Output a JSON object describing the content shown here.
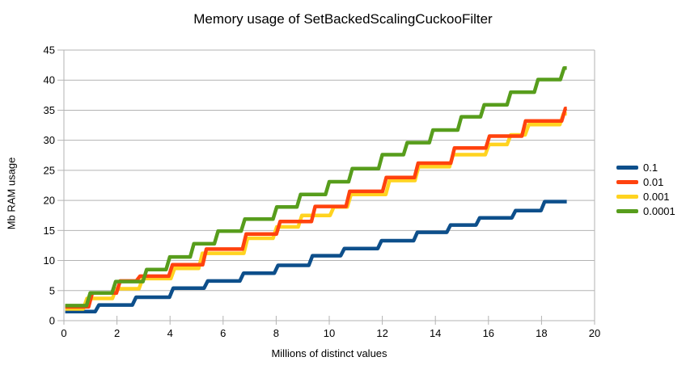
{
  "chart_data": {
    "type": "line",
    "line_style": "step",
    "title": "Memory usage of SetBackedScalingCuckooFilter",
    "xlabel": "Millions of distinct values",
    "ylabel": "Mb RAM usage",
    "xlim": [
      0,
      20
    ],
    "ylim": [
      0,
      45
    ],
    "x_ticks": [
      0,
      2,
      4,
      6,
      8,
      10,
      12,
      14,
      16,
      18,
      20
    ],
    "y_ticks": [
      0,
      5,
      10,
      15,
      20,
      25,
      30,
      35,
      40,
      45
    ],
    "grid": "horizontal",
    "legend_position": "right",
    "x_end": 18.95,
    "draw_order": [
      0,
      2,
      1,
      3
    ],
    "colors": {
      "grid": "#b3b3b3",
      "axis": "#b3b3b3",
      "text": "#000000",
      "background": "#ffffff"
    },
    "series": [
      {
        "name": "0.1",
        "color": "#0d4f8b",
        "steps": [
          [
            0.05,
            1.5
          ],
          [
            1.25,
            2.6
          ],
          [
            2.65,
            3.9
          ],
          [
            4.05,
            5.4
          ],
          [
            5.35,
            6.6
          ],
          [
            6.7,
            7.9
          ],
          [
            8.0,
            9.2
          ],
          [
            9.3,
            10.8
          ],
          [
            10.5,
            12.0
          ],
          [
            11.9,
            13.3
          ],
          [
            13.25,
            14.7
          ],
          [
            14.5,
            15.9
          ],
          [
            15.6,
            17.1
          ],
          [
            16.95,
            18.3
          ],
          [
            18.05,
            19.8
          ]
        ]
      },
      {
        "name": "0.01",
        "color": "#ff420e",
        "steps": [
          [
            0.05,
            2.3
          ],
          [
            1.0,
            4.6
          ],
          [
            2.05,
            6.6
          ],
          [
            2.8,
            7.4
          ],
          [
            4.02,
            9.3
          ],
          [
            5.3,
            11.9
          ],
          [
            6.8,
            14.4
          ],
          [
            8.08,
            16.5
          ],
          [
            9.4,
            19.0
          ],
          [
            10.7,
            21.5
          ],
          [
            12.08,
            23.8
          ],
          [
            13.28,
            26.2
          ],
          [
            14.65,
            28.7
          ],
          [
            15.97,
            30.7
          ],
          [
            17.33,
            33.2
          ],
          [
            18.83,
            35.3
          ]
        ]
      },
      {
        "name": "0.001",
        "color": "#ffd320",
        "steps": [
          [
            0.05,
            1.95
          ],
          [
            0.8,
            3.7
          ],
          [
            1.9,
            5.3
          ],
          [
            2.9,
            7.0
          ],
          [
            4.1,
            8.7
          ],
          [
            5.15,
            11.2
          ],
          [
            6.85,
            13.7
          ],
          [
            7.95,
            15.6
          ],
          [
            8.9,
            17.5
          ],
          [
            10.1,
            18.9
          ],
          [
            10.75,
            21.0
          ],
          [
            12.2,
            23.3
          ],
          [
            13.3,
            25.6
          ],
          [
            14.6,
            27.6
          ],
          [
            15.95,
            29.3
          ],
          [
            16.77,
            30.9
          ],
          [
            17.45,
            32.6
          ],
          [
            18.76,
            34.4
          ]
        ]
      },
      {
        "name": "0.0001",
        "color": "#579d1c",
        "steps": [
          [
            0.05,
            2.5
          ],
          [
            0.92,
            4.6
          ],
          [
            1.88,
            6.5
          ],
          [
            3.05,
            8.5
          ],
          [
            3.92,
            10.6
          ],
          [
            4.83,
            12.8
          ],
          [
            5.74,
            14.9
          ],
          [
            6.75,
            16.9
          ],
          [
            7.95,
            18.9
          ],
          [
            8.85,
            21.0
          ],
          [
            9.93,
            23.1
          ],
          [
            10.8,
            25.3
          ],
          [
            11.93,
            27.6
          ],
          [
            12.87,
            29.6
          ],
          [
            13.84,
            31.7
          ],
          [
            14.91,
            33.9
          ],
          [
            15.77,
            35.9
          ],
          [
            16.77,
            38.0
          ],
          [
            17.8,
            40.1
          ],
          [
            18.78,
            42.0
          ]
        ]
      }
    ]
  }
}
